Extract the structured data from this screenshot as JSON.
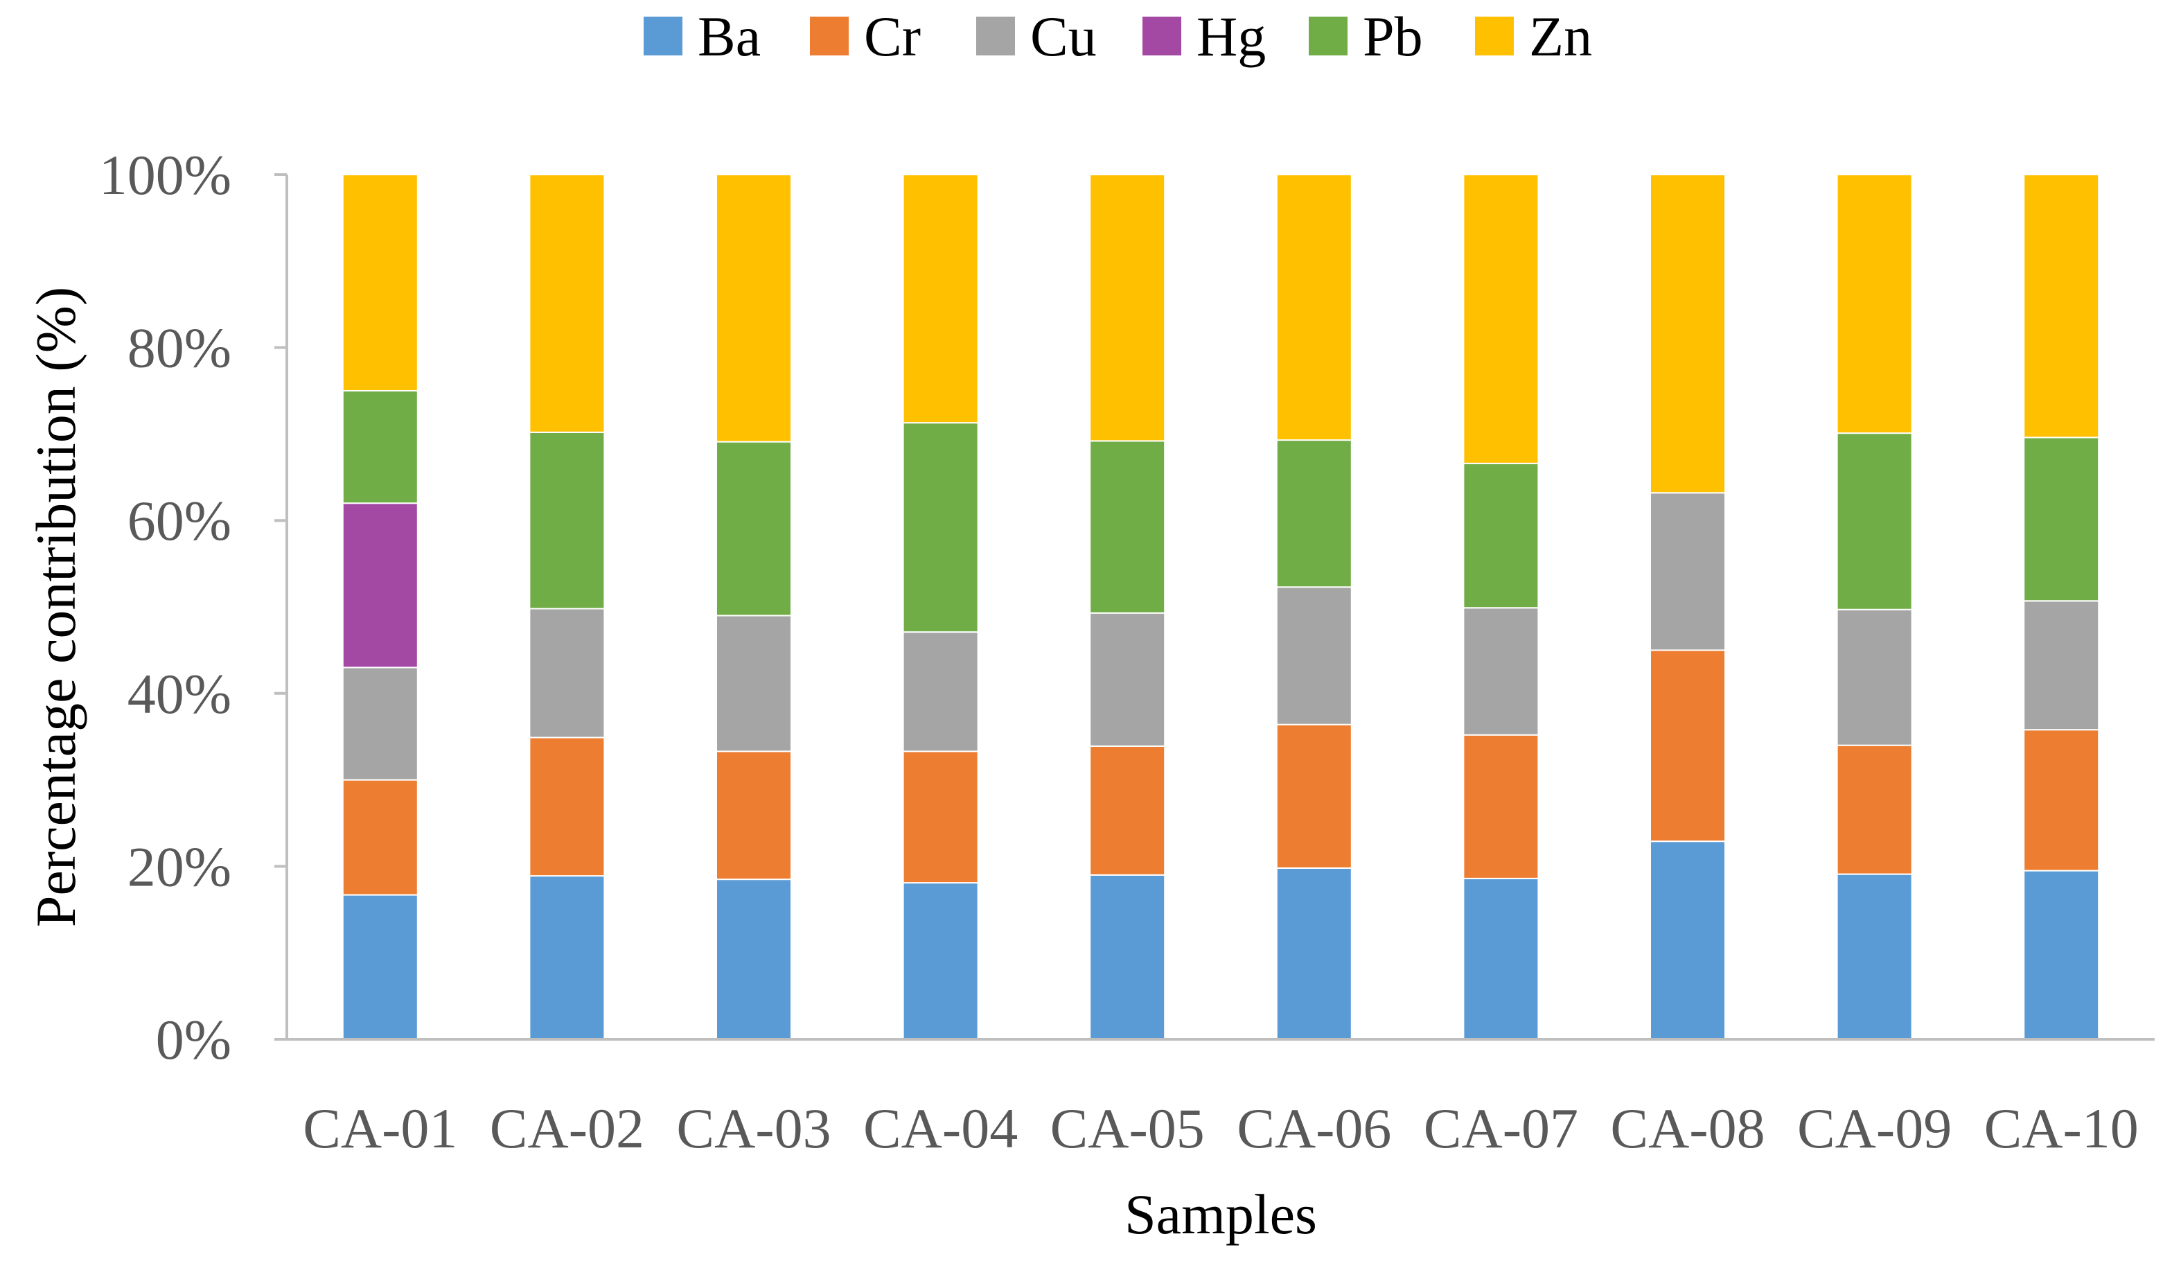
{
  "chart_data": {
    "type": "bar",
    "stacked": true,
    "normalized": true,
    "title": "",
    "xlabel": "Samples",
    "ylabel": "Percentage contribution (%)",
    "ylim": [
      0,
      100
    ],
    "yticks": [
      0,
      20,
      40,
      60,
      80,
      100
    ],
    "ytick_labels": [
      "0%",
      "20%",
      "40%",
      "60%",
      "80%",
      "100%"
    ],
    "grid": false,
    "legend_position": "top",
    "categories": [
      "CA-01",
      "CA-02",
      "CA-03",
      "CA-04",
      "CA-05",
      "CA-06",
      "CA-07",
      "CA-08",
      "CA-09",
      "CA-10"
    ],
    "series": [
      {
        "name": "Ba",
        "color": "#5B9BD5",
        "values": [
          16.7,
          18.9,
          18.5,
          18.1,
          19.0,
          19.8,
          18.6,
          22.9,
          19.1,
          19.5
        ]
      },
      {
        "name": "Cr",
        "color": "#ED7D31",
        "values": [
          13.3,
          16.0,
          14.8,
          15.2,
          14.9,
          16.6,
          16.6,
          22.1,
          14.9,
          16.3
        ]
      },
      {
        "name": "Cu",
        "color": "#A5A5A5",
        "values": [
          13.0,
          14.9,
          15.7,
          13.8,
          15.4,
          15.9,
          14.7,
          18.2,
          15.7,
          14.9
        ]
      },
      {
        "name": "Hg",
        "color": "#A349A4",
        "values": [
          19.0,
          0,
          0,
          0,
          0,
          0,
          0,
          0,
          0,
          0
        ]
      },
      {
        "name": "Pb",
        "color": "#70AD47",
        "values": [
          13.0,
          20.4,
          20.1,
          24.2,
          19.9,
          17.0,
          16.7,
          0,
          20.4,
          18.9
        ]
      },
      {
        "name": "Zn",
        "color": "#FFC000",
        "values": [
          25.0,
          29.8,
          30.9,
          28.7,
          30.8,
          30.7,
          33.4,
          36.8,
          29.9,
          30.4
        ]
      }
    ]
  }
}
